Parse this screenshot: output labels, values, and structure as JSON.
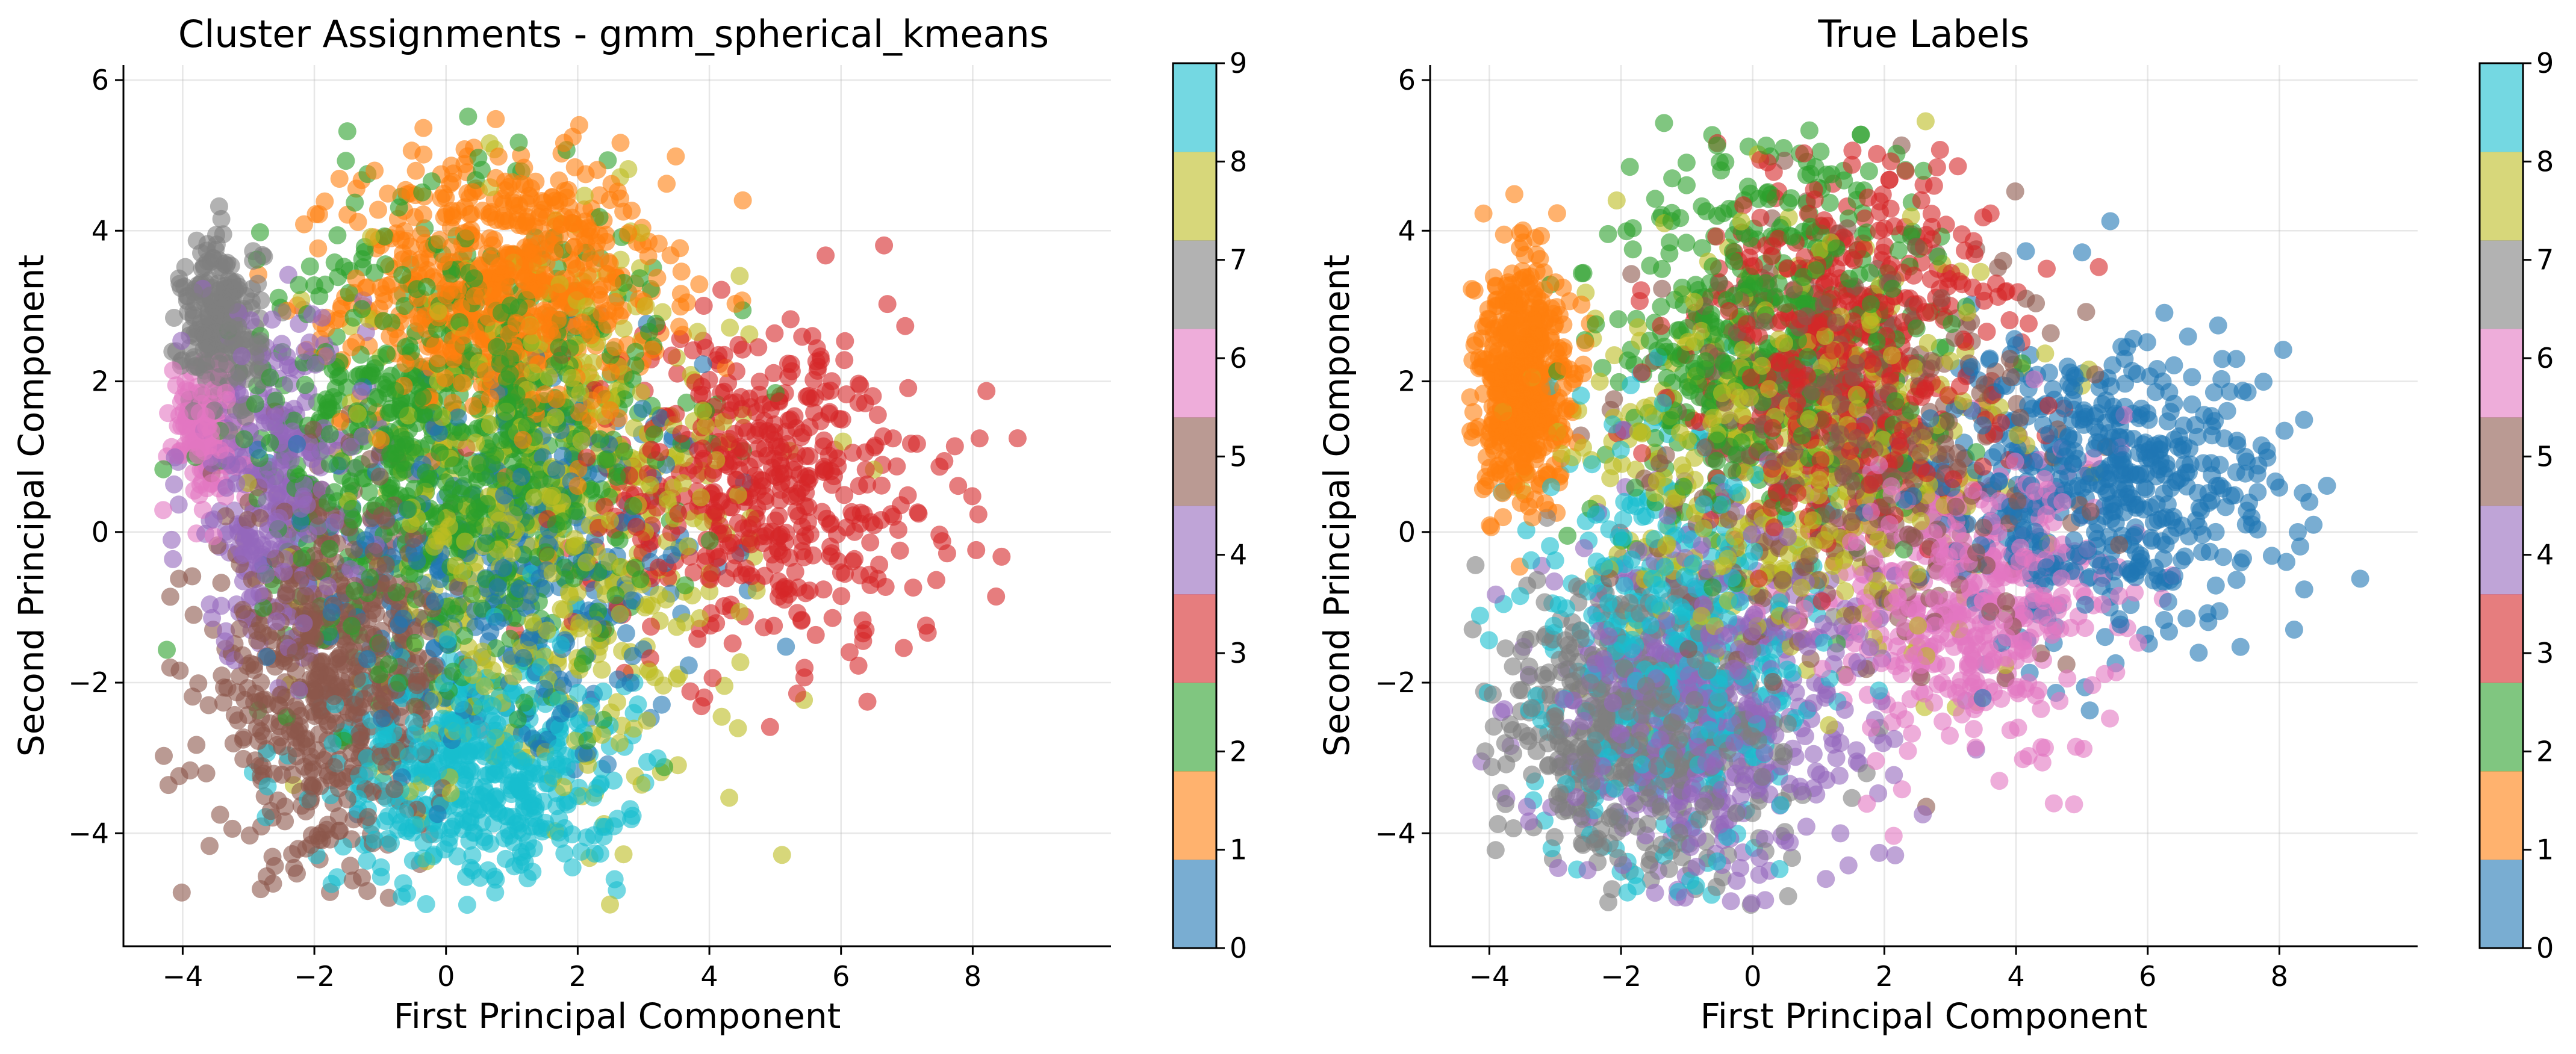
{
  "chart_data": [
    {
      "type": "scatter",
      "title": "Cluster Assignments - gmm_spherical_kmeans",
      "xlabel": "First Principal Component",
      "ylabel": "Second Principal Component",
      "xlim": [
        -4.9,
        10.1
      ],
      "ylim": [
        -5.5,
        6.2
      ],
      "xticks": [
        -4,
        -2,
        0,
        2,
        4,
        6,
        8
      ],
      "yticks": [
        -4,
        -2,
        0,
        2,
        4,
        6
      ],
      "xtick_labels": [
        "−4",
        "−2",
        "0",
        "2",
        "4",
        "6",
        "8"
      ],
      "ytick_labels": [
        "−4",
        "−2",
        "0",
        "2",
        "4",
        "6"
      ],
      "grid": true,
      "colormap": "tab10",
      "point_alpha": 0.6,
      "colorbar": {
        "ticks": [
          0,
          1,
          2,
          3,
          4,
          5,
          6,
          7,
          8,
          9
        ],
        "labels": [
          "0",
          "1",
          "2",
          "3",
          "4",
          "5",
          "6",
          "7",
          "8",
          "9"
        ]
      },
      "series": [
        {
          "label": 0,
          "color": "#1f77b4",
          "centroid": [
            1.0,
            -0.5
          ],
          "spread": [
            1.5,
            1.4
          ],
          "approx_count": 350
        },
        {
          "label": 1,
          "color": "#ff7f0e",
          "centroid": [
            0.9,
            3.2
          ],
          "spread": [
            1.2,
            0.9
          ],
          "approx_count": 700
        },
        {
          "label": 2,
          "color": "#2ca02c",
          "centroid": [
            0.2,
            1.2
          ],
          "spread": [
            1.5,
            1.5
          ],
          "approx_count": 900
        },
        {
          "label": 3,
          "color": "#d62728",
          "centroid": [
            4.8,
            0.6
          ],
          "spread": [
            1.4,
            1.1
          ],
          "approx_count": 500
        },
        {
          "label": 4,
          "color": "#9467bd",
          "centroid": [
            -2.6,
            0.6
          ],
          "spread": [
            0.7,
            1.1
          ],
          "approx_count": 300
        },
        {
          "label": 5,
          "color": "#8c564b",
          "centroid": [
            -1.8,
            -2.0
          ],
          "spread": [
            0.9,
            1.2
          ],
          "approx_count": 600
        },
        {
          "label": 6,
          "color": "#e377c2",
          "centroid": [
            -3.7,
            1.4
          ],
          "spread": [
            0.25,
            0.45
          ],
          "approx_count": 150
        },
        {
          "label": 7,
          "color": "#7f7f7f",
          "centroid": [
            -3.4,
            2.7
          ],
          "spread": [
            0.3,
            0.6
          ],
          "approx_count": 250
        },
        {
          "label": 8,
          "color": "#bcbd22",
          "centroid": [
            1.6,
            0.2
          ],
          "spread": [
            1.5,
            1.8
          ],
          "approx_count": 550
        },
        {
          "label": 9,
          "color": "#17becf",
          "centroid": [
            0.5,
            -3.2
          ],
          "spread": [
            1.1,
            0.8
          ],
          "approx_count": 500
        }
      ]
    },
    {
      "type": "scatter",
      "title": "True Labels",
      "xlabel": "First Principal Component",
      "ylabel": "Second Principal Component",
      "xlim": [
        -4.9,
        10.1
      ],
      "ylim": [
        -5.5,
        6.2
      ],
      "xticks": [
        -4,
        -2,
        0,
        2,
        4,
        6,
        8
      ],
      "yticks": [
        -4,
        -2,
        0,
        2,
        4,
        6
      ],
      "xtick_labels": [
        "−4",
        "−2",
        "0",
        "2",
        "4",
        "6",
        "8"
      ],
      "ytick_labels": [
        "−4",
        "−2",
        "0",
        "2",
        "4",
        "6"
      ],
      "grid": true,
      "colormap": "tab10",
      "point_alpha": 0.6,
      "colorbar": {
        "ticks": [
          0,
          1,
          2,
          3,
          4,
          5,
          6,
          7,
          8,
          9
        ],
        "labels": [
          "0",
          "1",
          "2",
          "3",
          "4",
          "5",
          "6",
          "7",
          "8",
          "9"
        ]
      },
      "series": [
        {
          "label": 0,
          "color": "#1f77b4",
          "centroid": [
            5.2,
            0.6
          ],
          "spread": [
            1.4,
            1.0
          ],
          "approx_count": 550
        },
        {
          "label": 1,
          "color": "#ff7f0e",
          "centroid": [
            -3.5,
            2.0
          ],
          "spread": [
            0.35,
            0.8
          ],
          "approx_count": 550
        },
        {
          "label": 2,
          "color": "#2ca02c",
          "centroid": [
            0.3,
            2.6
          ],
          "spread": [
            1.3,
            1.3
          ],
          "approx_count": 500
        },
        {
          "label": 3,
          "color": "#d62728",
          "centroid": [
            1.5,
            2.4
          ],
          "spread": [
            1.2,
            1.2
          ],
          "approx_count": 500
        },
        {
          "label": 4,
          "color": "#9467bd",
          "centroid": [
            -0.6,
            -2.4
          ],
          "spread": [
            1.3,
            1.3
          ],
          "approx_count": 500
        },
        {
          "label": 5,
          "color": "#8c564b",
          "centroid": [
            1.6,
            1.0
          ],
          "spread": [
            1.5,
            1.4
          ],
          "approx_count": 450
        },
        {
          "label": 6,
          "color": "#e377c2",
          "centroid": [
            3.3,
            -1.0
          ],
          "spread": [
            1.1,
            1.0
          ],
          "approx_count": 450
        },
        {
          "label": 7,
          "color": "#7f7f7f",
          "centroid": [
            -1.8,
            -2.6
          ],
          "spread": [
            1.1,
            1.0
          ],
          "approx_count": 500
        },
        {
          "label": 8,
          "color": "#bcbd22",
          "centroid": [
            0.5,
            1.0
          ],
          "spread": [
            1.6,
            1.4
          ],
          "approx_count": 450
        },
        {
          "label": 9,
          "color": "#17becf",
          "centroid": [
            -1.3,
            -1.6
          ],
          "spread": [
            1.1,
            1.4
          ],
          "approx_count": 450
        }
      ]
    }
  ]
}
